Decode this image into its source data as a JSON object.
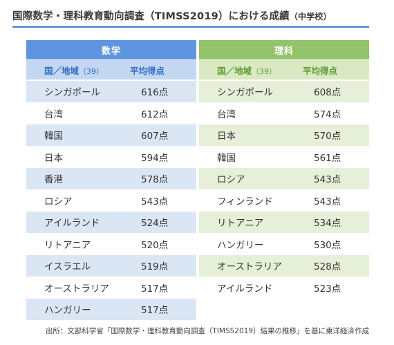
{
  "title": {
    "main": "国際数学・理科教育動向調査（TIMSS2019）における成績",
    "paren": "（中学校）"
  },
  "colors": {
    "math_header": "#5f95de",
    "math_subheader": "#c3d7f2",
    "math_row_alt": "#dbe6f5",
    "science_header": "#93c36a",
    "science_subheader": "#d9eac3",
    "science_row_alt": "#e6f0d9",
    "title_rule": "#3f7fd0"
  },
  "math": {
    "subject": "数学",
    "col_country": "国／地域",
    "col_country_paren": "（39）",
    "col_score": "平均得点",
    "rows": [
      {
        "country": "シンガポール",
        "score": "616点"
      },
      {
        "country": "台湾",
        "score": "612点"
      },
      {
        "country": "韓国",
        "score": "607点"
      },
      {
        "country": "日本",
        "score": "594点"
      },
      {
        "country": "香港",
        "score": "578点"
      },
      {
        "country": "ロシア",
        "score": "543点"
      },
      {
        "country": "アイルランド",
        "score": "524点"
      },
      {
        "country": "リトアニア",
        "score": "520点"
      },
      {
        "country": "イスラエル",
        "score": "519点"
      },
      {
        "country": "オーストラリア",
        "score": "517点"
      },
      {
        "country": "ハンガリー",
        "score": "517点"
      }
    ]
  },
  "science": {
    "subject": "理科",
    "col_country": "国／地域",
    "col_country_paren": "（39）",
    "col_score": "平均得点",
    "rows": [
      {
        "country": "シンガポール",
        "score": "608点"
      },
      {
        "country": "台湾",
        "score": "574点"
      },
      {
        "country": "日本",
        "score": "570点"
      },
      {
        "country": "韓国",
        "score": "561点"
      },
      {
        "country": "ロシア",
        "score": "543点"
      },
      {
        "country": "フィンランド",
        "score": "543点"
      },
      {
        "country": "リトアニア",
        "score": "534点"
      },
      {
        "country": "ハンガリー",
        "score": "530点"
      },
      {
        "country": "オーストラリア",
        "score": "528点"
      },
      {
        "country": "アイルランド",
        "score": "523点"
      }
    ]
  },
  "source": "出所：文部科学省「国際数学・理科教育動向調査（TIMSS2019）結果の推移」を基に東洋経済作成"
}
